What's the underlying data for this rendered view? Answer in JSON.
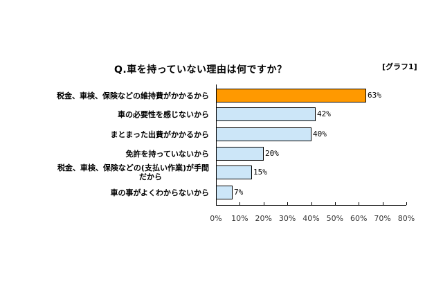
{
  "title": "Q.車を持っていない理由は何ですか？",
  "tag": "[グラフ1]",
  "colors": {
    "highlight": "#FF9900",
    "normal": "#CCE6F8",
    "border": "#000000"
  },
  "chart_data": {
    "type": "bar",
    "orientation": "horizontal",
    "title": "Q.車を持っていない理由は何ですか？",
    "categories": [
      "税金、車検、保険などの維持費がかかるから",
      "車の必要性を感じないから",
      "まとまった出費がかかるから",
      "免許を持っていないから",
      "税金、車検、保険などの(支払い作業)が手間だから",
      "車の事がよくわからないから"
    ],
    "values": [
      63,
      42,
      40,
      20,
      15,
      7
    ],
    "value_labels": [
      "63%",
      "42%",
      "40%",
      "20%",
      "15%",
      "7%"
    ],
    "xlabel": "",
    "ylabel": "",
    "xlim": [
      0,
      80
    ],
    "xticks": [
      "0%",
      "10%",
      "20%",
      "30%",
      "40%",
      "50%",
      "60%",
      "70%",
      "80%"
    ],
    "grid": false,
    "legend": null
  },
  "labels": [
    "税金、車検、保険などの維持費がかかるから",
    "車の必要性を感じないから",
    "まとまった出費がかかるから",
    "免許を持っていないから",
    "税金、車検、保険などの(支払い作業)が手間\nだから",
    "車の事がよくわからないから"
  ]
}
